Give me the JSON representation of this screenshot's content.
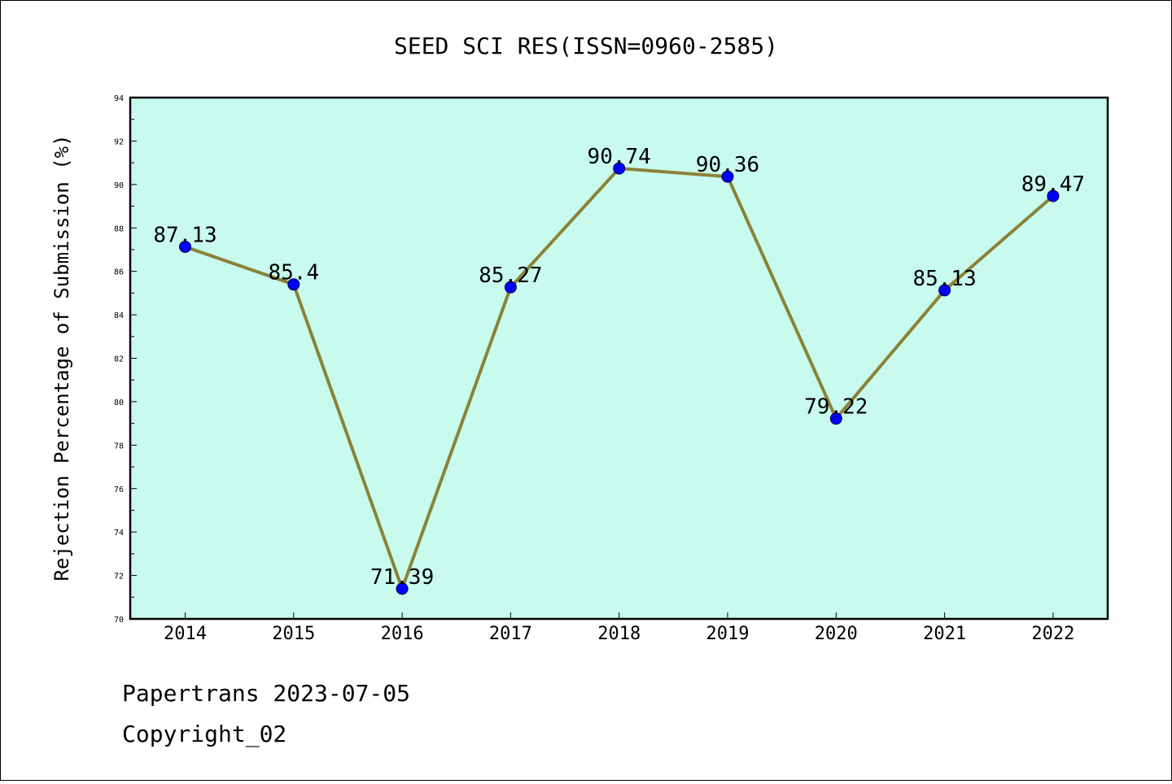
{
  "chart_data": {
    "type": "line",
    "title": "SEED SCI RES(ISSN=0960-2585)",
    "ylabel": "Rejection Percentage of Submission (%)",
    "xlabel": "",
    "categories": [
      "2014",
      "2015",
      "2016",
      "2017",
      "2018",
      "2019",
      "2020",
      "2021",
      "2022"
    ],
    "values": [
      87.13,
      85.4,
      71.39,
      85.27,
      90.74,
      90.36,
      79.22,
      85.13,
      89.47
    ],
    "data_labels": [
      "87.13",
      "85.4",
      "71.39",
      "85.27",
      "90.74",
      "90.36",
      "79.22",
      "85.13",
      "89.47"
    ],
    "ylim": [
      70,
      94
    ],
    "yticks": [
      "70",
      "72",
      "74",
      "76",
      "78",
      "80",
      "82",
      "84",
      "86",
      "88",
      "90",
      "92",
      "94"
    ],
    "grid": false,
    "legend": "none",
    "colors": {
      "plot_background": "#c8fbee",
      "line": "#8b8237",
      "marker": "#0000ff"
    }
  },
  "footer": {
    "line1": "Papertrans 2023-07-05",
    "line2": "Copyright_02"
  }
}
